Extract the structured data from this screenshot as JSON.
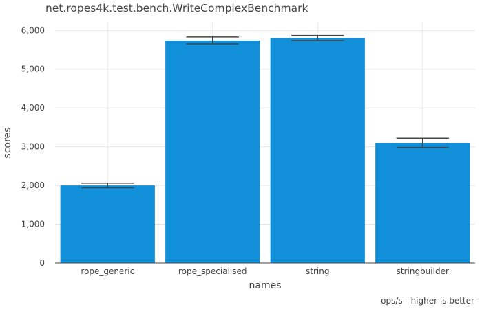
{
  "chart_data": {
    "type": "bar",
    "title": "net.ropes4k.test.bench.WriteComplexBenchmark",
    "xlabel": "names",
    "ylabel": "scores",
    "categories": [
      "rope_generic",
      "rope_specialised",
      "string",
      "stringbuilder"
    ],
    "values": [
      2000,
      5740,
      5800,
      3100
    ],
    "error": [
      [
        1940,
        2060
      ],
      [
        5650,
        5830
      ],
      [
        5740,
        5870
      ],
      [
        2980,
        3220
      ]
    ],
    "ylim": [
      0,
      6200
    ],
    "yticks": [
      0,
      1000,
      2000,
      3000,
      4000,
      5000,
      6000
    ],
    "ytick_labels": [
      "0",
      "1,000",
      "2,000",
      "3,000",
      "4,000",
      "5,000",
      "6,000"
    ],
    "grid": true,
    "bar_color": "#1190d9",
    "annotation": "ops/s - higher is better"
  }
}
